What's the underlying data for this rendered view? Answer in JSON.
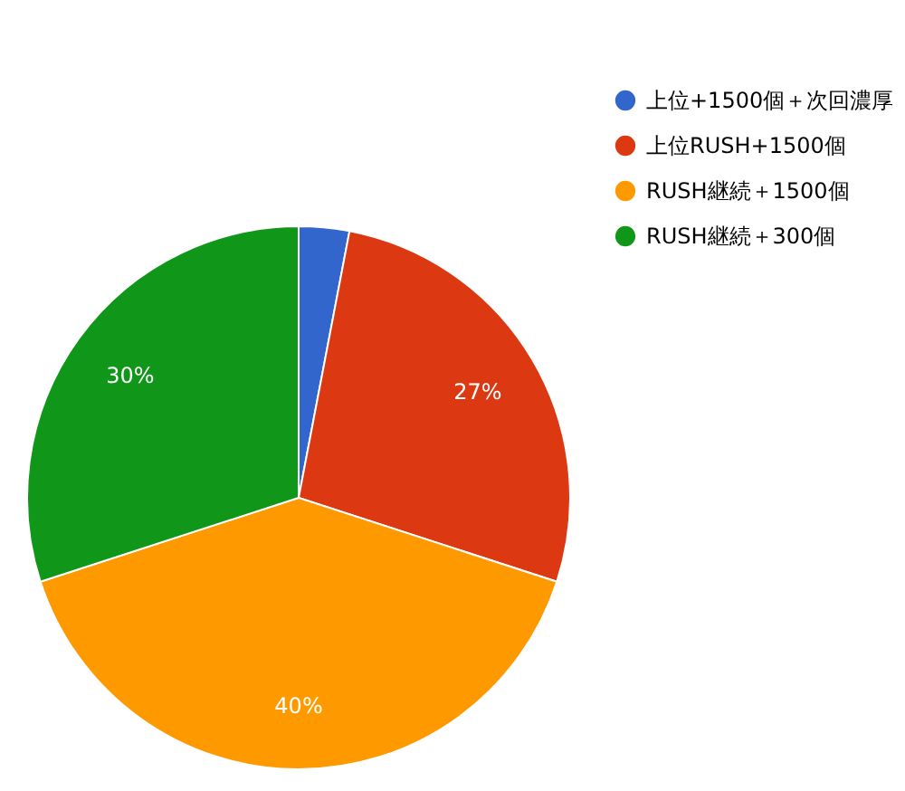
{
  "chart_data": {
    "type": "pie",
    "categories": [
      "上位+1500個＋次回濃厚",
      "上位RUSH+1500個",
      "RUSH継続＋1500個",
      "RUSH継続＋300個"
    ],
    "values": [
      3,
      27,
      40,
      30
    ],
    "colors": [
      "#3366cc",
      "#dc3912",
      "#ff9900",
      "#109618"
    ],
    "value_labels": [
      null,
      "27%",
      "40%",
      "30%"
    ],
    "legend": "top right"
  }
}
